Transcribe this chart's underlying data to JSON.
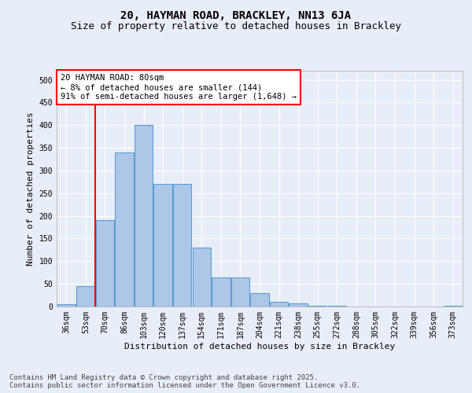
{
  "title_line1": "20, HAYMAN ROAD, BRACKLEY, NN13 6JA",
  "title_line2": "Size of property relative to detached houses in Brackley",
  "xlabel": "Distribution of detached houses by size in Brackley",
  "ylabel": "Number of detached properties",
  "categories": [
    "36sqm",
    "53sqm",
    "70sqm",
    "86sqm",
    "103sqm",
    "120sqm",
    "137sqm",
    "154sqm",
    "171sqm",
    "187sqm",
    "204sqm",
    "221sqm",
    "238sqm",
    "255sqm",
    "272sqm",
    "288sqm",
    "305sqm",
    "322sqm",
    "339sqm",
    "356sqm",
    "373sqm"
  ],
  "values": [
    5,
    45,
    190,
    340,
    400,
    270,
    270,
    130,
    65,
    65,
    30,
    10,
    7,
    2,
    1,
    0,
    0,
    0,
    0,
    0,
    2
  ],
  "bar_color": "#aec6e8",
  "bar_edge_color": "#5a9fd4",
  "vline_x": 1.5,
  "vline_color": "red",
  "annotation_text": "20 HAYMAN ROAD: 80sqm\n← 8% of detached houses are smaller (144)\n91% of semi-detached houses are larger (1,648) →",
  "annotation_box_color": "white",
  "annotation_box_edge_color": "red",
  "ylim": [
    0,
    520
  ],
  "yticks": [
    0,
    50,
    100,
    150,
    200,
    250,
    300,
    350,
    400,
    450,
    500
  ],
  "background_color": "#e8eef8",
  "grid_color": "white",
  "footer_text": "Contains HM Land Registry data © Crown copyright and database right 2025.\nContains public sector information licensed under the Open Government Licence v3.0.",
  "title_fontsize": 10,
  "subtitle_fontsize": 9,
  "axis_label_fontsize": 8,
  "tick_fontsize": 7,
  "annotation_fontsize": 7.5,
  "footer_fontsize": 6.5
}
